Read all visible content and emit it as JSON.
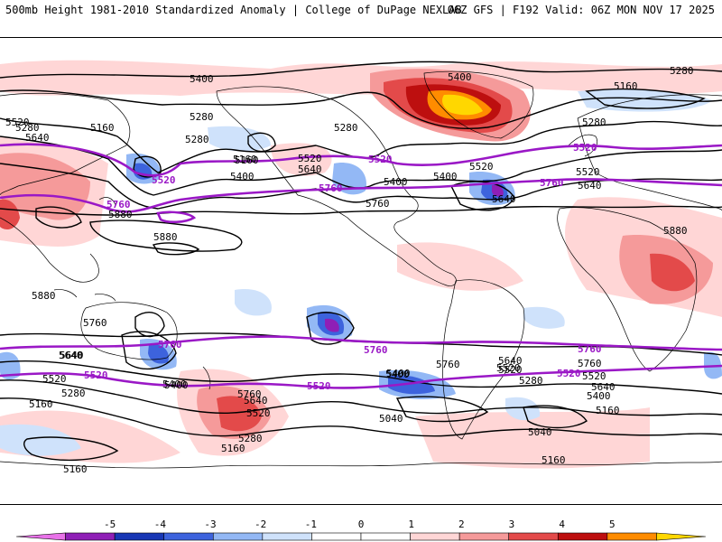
{
  "header": {
    "left_title": "500mb Height 1981-2010 Standardized Anomaly | College of DuPage NEXLAB",
    "right_title": "06Z GFS | F192 Valid: 06Z MON NOV 17 2025"
  },
  "colors": {
    "ocean": "#ffffff",
    "land_outline": "#000000",
    "contour": "#000000",
    "highlight_contour": "#9a18c6",
    "anomaly_scale": [
      "#e872e8",
      "#8f1fb6",
      "#1837b5",
      "#3d63dd",
      "#93b8f5",
      "#cfe2fb",
      "#ffffff",
      "#ffffff",
      "#ffd6d6",
      "#f59a9a",
      "#e34a4a",
      "#bd0f0f",
      "#ff8c00",
      "#ffd700"
    ]
  },
  "contour_labels": [
    "5400",
    "5280",
    "5160",
    "5280",
    "5160",
    "5280",
    "5520",
    "5640",
    "5280",
    "5400",
    "5160",
    "5520",
    "5640",
    "5400",
    "5520",
    "5640",
    "5400",
    "5280",
    "5160",
    "5280",
    "5760",
    "5880",
    "5880",
    "5880",
    "5880",
    "5760",
    "5640",
    "5520",
    "5400",
    "5280",
    "5160",
    "5160",
    "5040",
    "5040",
    "5160",
    "5160",
    "5400",
    "5520",
    "5640",
    "5760",
    "5280",
    "5400",
    "5520",
    "5640",
    "5760",
    "5640",
    "5520",
    "5400",
    "5280",
    "5160",
    "5760",
    "5640",
    "5520",
    "5400",
    "5520",
    "5640",
    "5400"
  ],
  "highlight_labels": [
    "5520",
    "5760",
    "5520",
    "5760",
    "5520",
    "5760",
    "5520",
    "5760",
    "5520",
    "5760",
    "5760",
    "5520"
  ],
  "colorbar": {
    "ticks": [
      "-5",
      "-4",
      "-3",
      "-2",
      "-1",
      "0",
      "1",
      "2",
      "3",
      "4",
      "5"
    ]
  }
}
